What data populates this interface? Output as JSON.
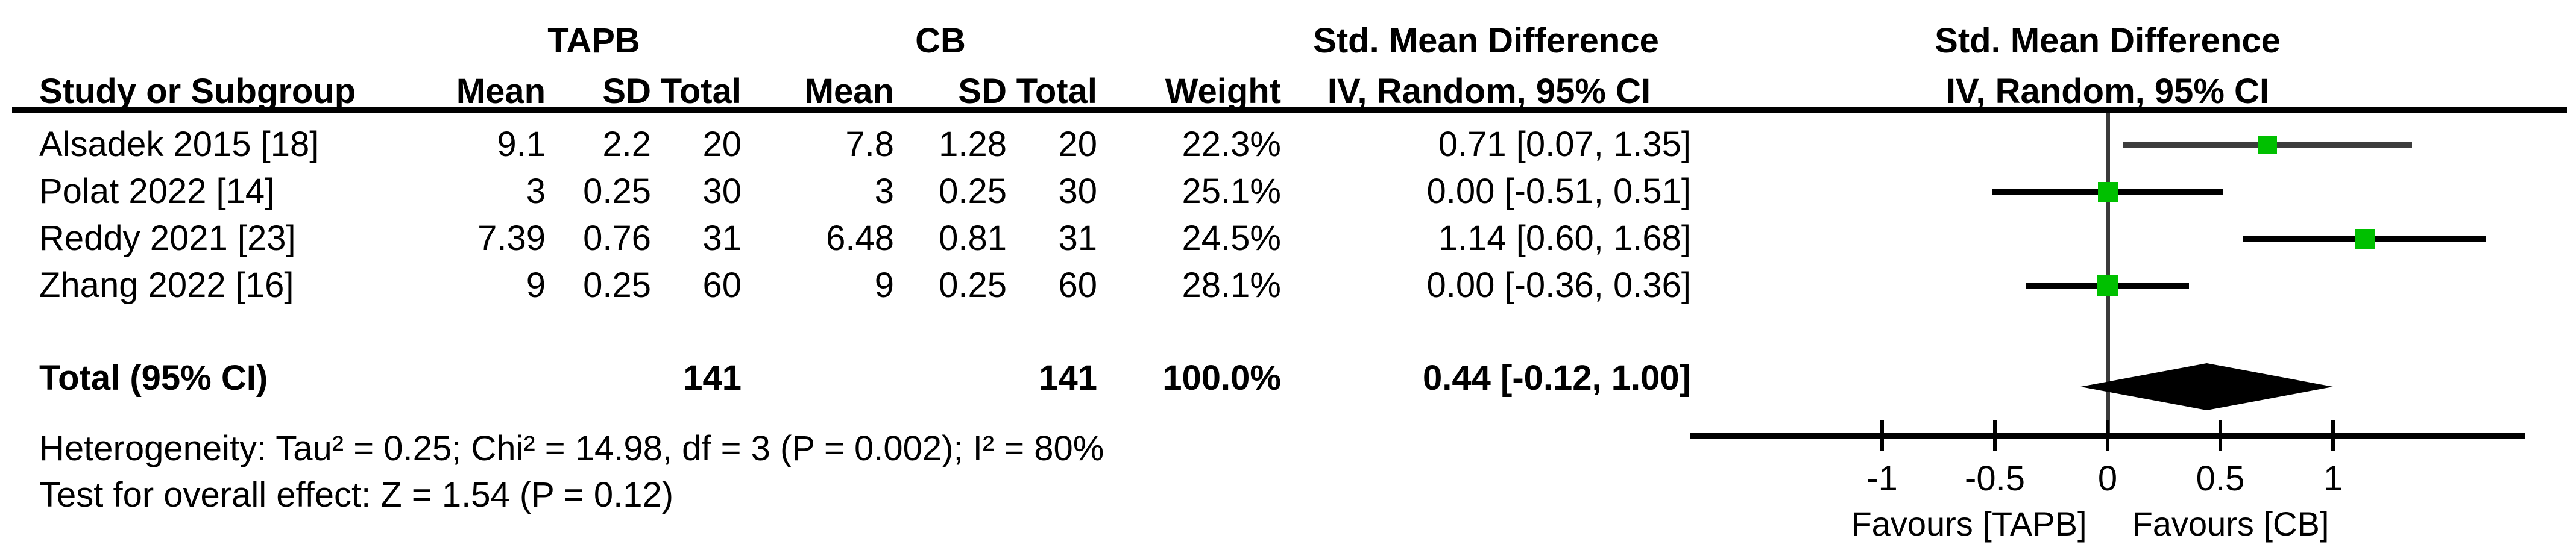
{
  "table": {
    "group1": "TAPB",
    "group2": "CB",
    "effect_title": "Std. Mean Difference",
    "effect_subtitle": "IV, Random, 95% CI",
    "col_study": "Study or Subgroup",
    "col_mean": "Mean",
    "col_sd": "SD",
    "col_total": "Total",
    "col_weight": "Weight"
  },
  "chart_data": {
    "type": "forest",
    "effect_measure": "Std. Mean Difference",
    "model": "IV, Random, 95% CI",
    "studies": [
      {
        "name": "Alsadek 2015 [18]",
        "mean1": "9.1",
        "sd1": "2.2",
        "n1": "20",
        "mean2": "7.8",
        "sd2": "1.28",
        "n2": "20",
        "weight": "22.3%",
        "weight_pct": 22.3,
        "smd": 0.71,
        "ci_low": 0.07,
        "ci_high": 1.35,
        "ci_text": "0.71 [0.07, 1.35]",
        "line_color": "#3d3d3d"
      },
      {
        "name": "Polat 2022 [14]",
        "mean1": "3",
        "sd1": "0.25",
        "n1": "30",
        "mean2": "3",
        "sd2": "0.25",
        "n2": "30",
        "weight": "25.1%",
        "weight_pct": 25.1,
        "smd": 0.0,
        "ci_low": -0.51,
        "ci_high": 0.51,
        "ci_text": "0.00 [-0.51, 0.51]",
        "line_color": "#000000"
      },
      {
        "name": "Reddy 2021 [23]",
        "mean1": "7.39",
        "sd1": "0.76",
        "n1": "31",
        "mean2": "6.48",
        "sd2": "0.81",
        "n2": "31",
        "weight": "24.5%",
        "weight_pct": 24.5,
        "smd": 1.14,
        "ci_low": 0.6,
        "ci_high": 1.68,
        "ci_text": "1.14 [0.60, 1.68]",
        "line_color": "#000000"
      },
      {
        "name": "Zhang 2022 [16]",
        "mean1": "9",
        "sd1": "0.25",
        "n1": "60",
        "mean2": "9",
        "sd2": "0.25",
        "n2": "60",
        "weight": "28.1%",
        "weight_pct": 28.1,
        "smd": 0.0,
        "ci_low": -0.36,
        "ci_high": 0.36,
        "ci_text": "0.00 [-0.36, 0.36]",
        "line_color": "#000000"
      }
    ],
    "total": {
      "label": "Total (95% CI)",
      "n1": "141",
      "n2": "141",
      "weight": "100.0%",
      "smd": 0.44,
      "ci_low": -0.12,
      "ci_high": 1.0,
      "ci_text": "0.44 [-0.12, 1.00]"
    },
    "heterogeneity": "Heterogeneity: Tau² = 0.25; Chi² = 14.98, df = 3 (P = 0.002); I² = 80%",
    "overall_effect": "Test for overall effect: Z = 1.54 (P = 0.12)",
    "axis": {
      "ticks": [
        -1,
        -0.5,
        0,
        0.5,
        1
      ],
      "tick_labels": [
        "-1",
        "-0.5",
        "0",
        "0.5",
        "1"
      ],
      "min": -1.85,
      "max": 1.85
    },
    "favours_left": "Favours [TAPB]",
    "favours_right": "Favours [CB]",
    "colors": {
      "marker": "#00c000",
      "diamond": "#000000",
      "axis": "#000000",
      "zero_line": "#3a3a3a",
      "text": "#000000"
    }
  }
}
